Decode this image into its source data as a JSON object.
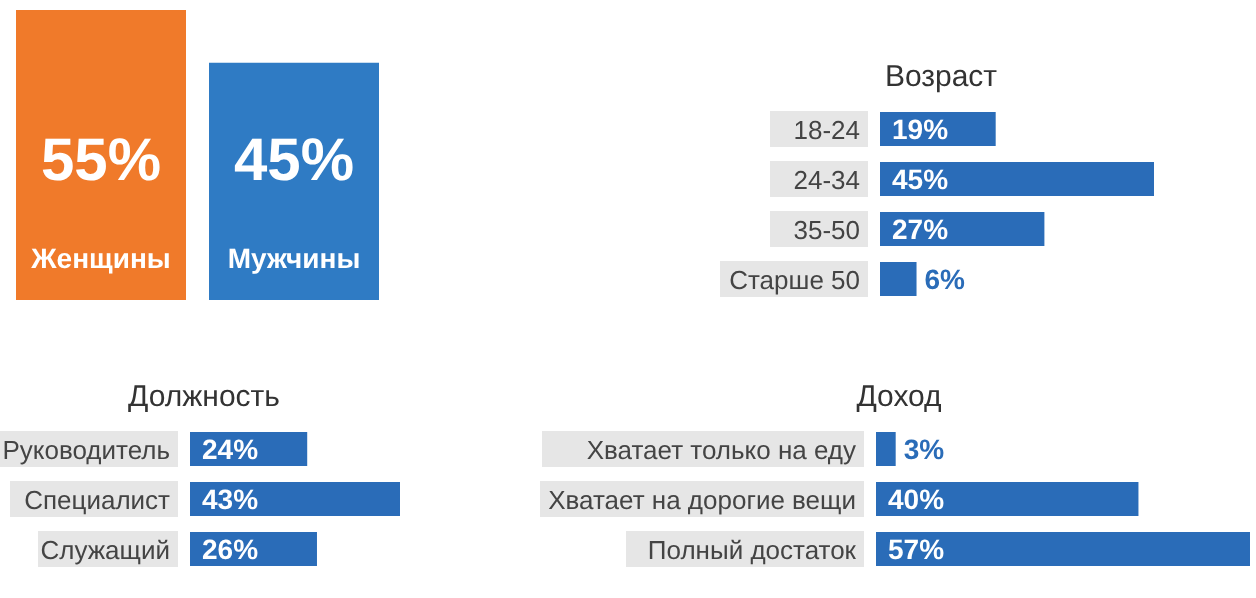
{
  "chart_data": [
    {
      "type": "bar",
      "categories": [
        "Женщины",
        "Мужчины"
      ],
      "values": [
        55,
        45
      ],
      "colors": [
        "#f07a2a",
        "#2f7bc4"
      ],
      "value_labels": [
        "55%",
        "45%"
      ]
    },
    {
      "type": "bar",
      "orientation": "horizontal",
      "title": "Возраст",
      "categories": [
        "18-24",
        "24-34",
        "35-50",
        "Старше 50"
      ],
      "values": [
        19,
        45,
        27,
        6
      ],
      "color": "#2a6cb8",
      "value_labels": [
        "19%",
        "45%",
        "27%",
        "6%"
      ]
    },
    {
      "type": "bar",
      "orientation": "horizontal",
      "title": "Должность",
      "categories": [
        "Руководитель",
        "Специалист",
        "Служащий"
      ],
      "values": [
        24,
        43,
        26
      ],
      "color": "#2a6cb8",
      "value_labels": [
        "24%",
        "43%",
        "26%"
      ]
    },
    {
      "type": "bar",
      "orientation": "horizontal",
      "title": "Доход",
      "categories": [
        "Хватает только на еду",
        "Хватает на дорогие вещи",
        "Полный достаток"
      ],
      "values": [
        3,
        40,
        57
      ],
      "color": "#2a6cb8",
      "value_labels": [
        "3%",
        "40%",
        "57%"
      ]
    }
  ]
}
